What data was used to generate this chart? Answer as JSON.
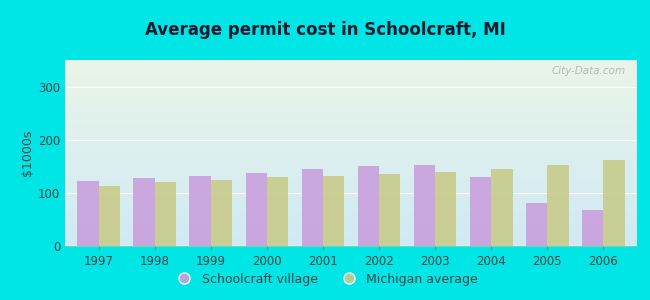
{
  "title": "Average permit cost in Schoolcraft, MI",
  "ylabel": "$1000s",
  "years": [
    1997,
    1998,
    1999,
    2000,
    2001,
    2002,
    2003,
    2004,
    2005,
    2006
  ],
  "schoolcraft_values": [
    122,
    128,
    132,
    138,
    145,
    150,
    152,
    130,
    80,
    68
  ],
  "michigan_values": [
    113,
    120,
    125,
    130,
    132,
    136,
    140,
    145,
    152,
    162
  ],
  "schoolcraft_color": "#c9a0dc",
  "michigan_color": "#c8cc8a",
  "background_outer": "#00e5e5",
  "background_inner_top": "#eaf5e8",
  "background_inner_bottom": "#d0eaf5",
  "ylim": [
    0,
    350
  ],
  "yticks": [
    0,
    100,
    200,
    300
  ],
  "bar_width": 0.38,
  "legend_label_schoolcraft": "Schoolcraft village",
  "legend_label_michigan": "Michigan average",
  "watermark": "City-Data.com",
  "title_color": "#1a1a2e",
  "tick_color": "#444444",
  "grid_color": "#ffffff"
}
